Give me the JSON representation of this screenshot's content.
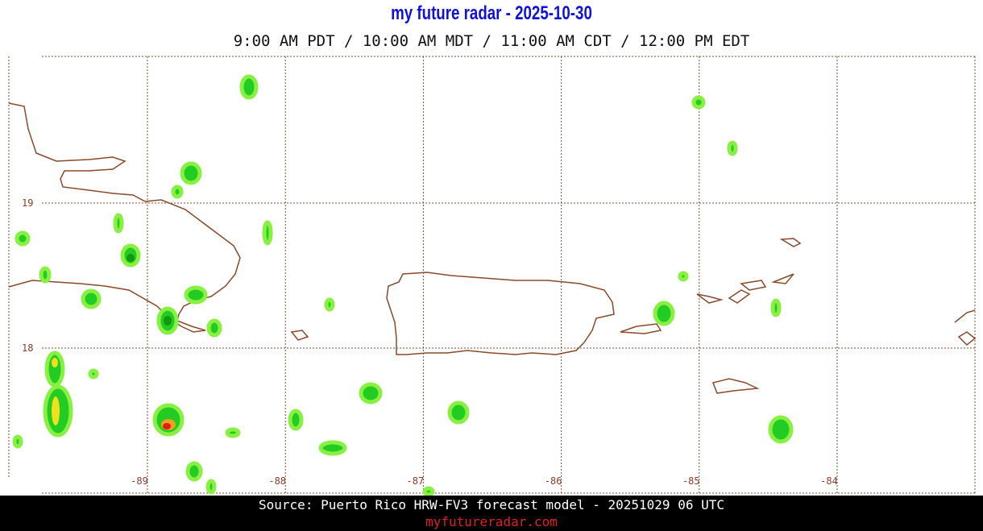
{
  "header": {
    "title": "my future radar - 2025-10-30",
    "subtitle": "9:00 AM PDT / 10:00 AM MDT / 11:00 AM CDT / 12:00 PM EDT"
  },
  "map": {
    "longitude_labels": [
      -89,
      -88,
      -87,
      -86,
      -85,
      -84
    ],
    "latitude_labels": [
      19,
      18
    ]
  },
  "footer": {
    "source": "Source: Puerto Rico HRW-FV3 forecast model - 20251029 06 UTC",
    "link": "myfutureradar.com"
  }
}
